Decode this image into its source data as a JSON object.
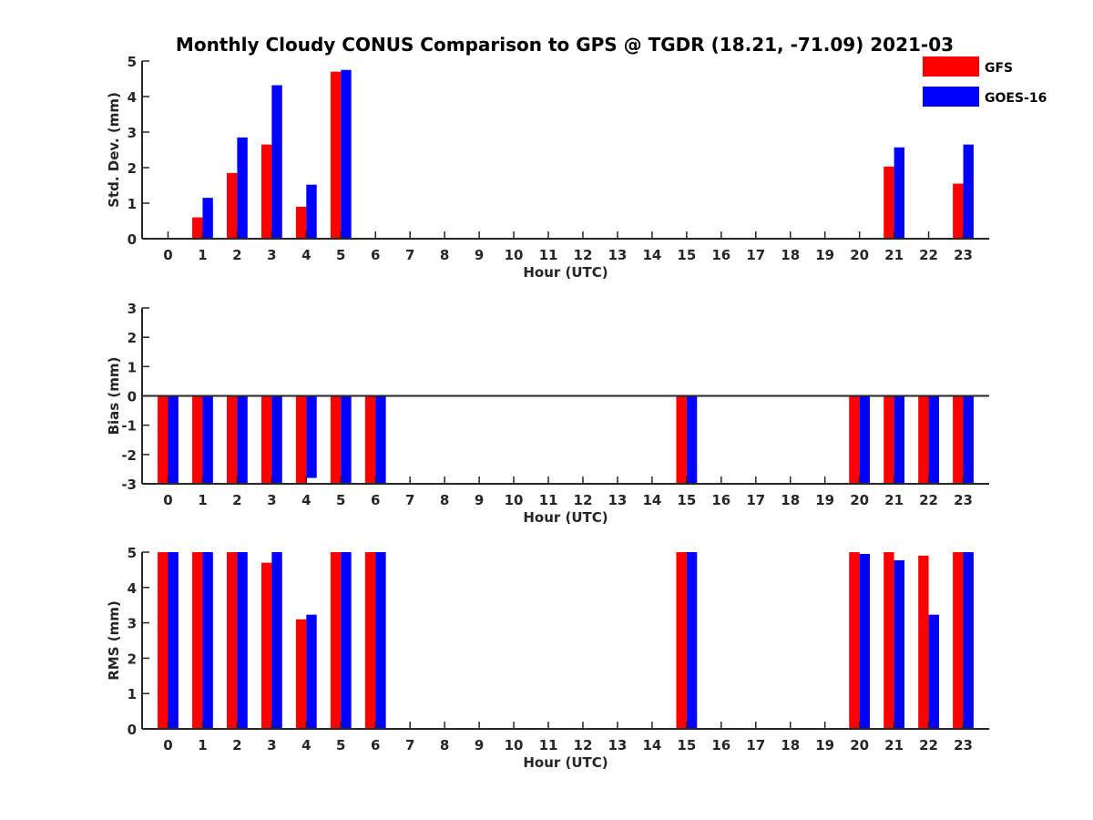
{
  "title": "Monthly Cloudy CONUS Comparison to GPS @ TGDR (18.21, -71.09) 2021-03",
  "legend": [
    {
      "label": "GFS",
      "color": "#ff0000"
    },
    {
      "label": "GOES-16",
      "color": "#0000ff"
    }
  ],
  "chart_data": [
    {
      "type": "bar",
      "xlabel": "Hour (UTC)",
      "ylabel": "Std. Dev. (mm)",
      "ylim": [
        0,
        5
      ],
      "yticks": [
        0,
        1,
        2,
        3,
        4,
        5
      ],
      "categories": [
        "0",
        "1",
        "2",
        "3",
        "4",
        "5",
        "6",
        "7",
        "8",
        "9",
        "10",
        "11",
        "12",
        "13",
        "14",
        "15",
        "16",
        "17",
        "18",
        "19",
        "20",
        "21",
        "22",
        "23"
      ],
      "series": [
        {
          "name": "GFS",
          "color": "#ff0000",
          "values": [
            0,
            0.6,
            1.85,
            2.65,
            0.9,
            4.7,
            0,
            null,
            null,
            null,
            null,
            null,
            null,
            null,
            null,
            0,
            null,
            null,
            null,
            null,
            0,
            2.03,
            0,
            1.55
          ]
        },
        {
          "name": "GOES-16",
          "color": "#0000ff",
          "values": [
            0,
            1.15,
            2.85,
            4.32,
            1.52,
            4.75,
            0,
            null,
            null,
            null,
            null,
            null,
            null,
            null,
            null,
            0,
            null,
            null,
            null,
            null,
            0,
            2.57,
            0,
            2.65
          ]
        }
      ]
    },
    {
      "type": "bar",
      "xlabel": "Hour (UTC)",
      "ylabel": "Bias (mm)",
      "ylim": [
        -3,
        3
      ],
      "yticks": [
        -3,
        -2,
        -1,
        0,
        1,
        2,
        3
      ],
      "categories": [
        "0",
        "1",
        "2",
        "3",
        "4",
        "5",
        "6",
        "7",
        "8",
        "9",
        "10",
        "11",
        "12",
        "13",
        "14",
        "15",
        "16",
        "17",
        "18",
        "19",
        "20",
        "21",
        "22",
        "23"
      ],
      "series": [
        {
          "name": "GFS",
          "color": "#ff0000",
          "values": [
            -3,
            -3,
            -3,
            -3,
            -3,
            -3,
            -3,
            null,
            null,
            null,
            null,
            null,
            null,
            null,
            null,
            -3,
            null,
            null,
            null,
            null,
            -3,
            -3,
            -3,
            -3
          ]
        },
        {
          "name": "GOES-16",
          "color": "#0000ff",
          "values": [
            -3,
            -3,
            -3,
            -3,
            -2.8,
            -3,
            -3,
            null,
            null,
            null,
            null,
            null,
            null,
            null,
            null,
            -3,
            null,
            null,
            null,
            null,
            -3,
            -3,
            -3,
            -3
          ]
        }
      ]
    },
    {
      "type": "bar",
      "xlabel": "Hour (UTC)",
      "ylabel": "RMS (mm)",
      "ylim": [
        0,
        5
      ],
      "yticks": [
        0,
        1,
        2,
        3,
        4,
        5
      ],
      "categories": [
        "0",
        "1",
        "2",
        "3",
        "4",
        "5",
        "6",
        "7",
        "8",
        "9",
        "10",
        "11",
        "12",
        "13",
        "14",
        "15",
        "16",
        "17",
        "18",
        "19",
        "20",
        "21",
        "22",
        "23"
      ],
      "series": [
        {
          "name": "GFS",
          "color": "#ff0000",
          "values": [
            5,
            5,
            5,
            4.7,
            3.1,
            5,
            5,
            null,
            null,
            null,
            null,
            null,
            null,
            null,
            null,
            5,
            null,
            null,
            null,
            null,
            5,
            5,
            4.9,
            5
          ]
        },
        {
          "name": "GOES-16",
          "color": "#0000ff",
          "values": [
            5,
            5,
            5,
            5,
            3.23,
            5,
            5,
            null,
            null,
            null,
            null,
            null,
            null,
            null,
            null,
            5,
            null,
            null,
            null,
            null,
            4.95,
            4.77,
            3.23,
            5
          ]
        }
      ]
    }
  ]
}
